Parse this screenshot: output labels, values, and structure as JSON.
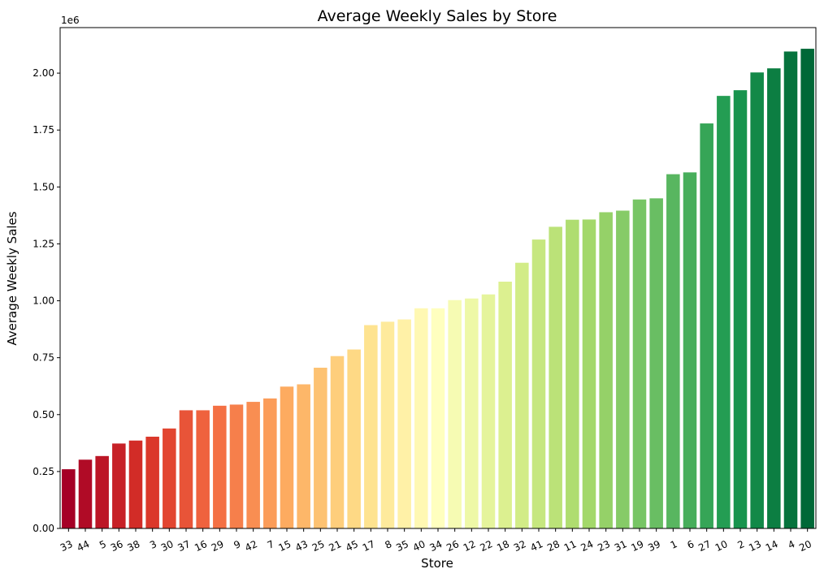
{
  "chart_data": {
    "type": "bar",
    "title": "Average Weekly Sales by Store",
    "xlabel": "Store",
    "ylabel": "Average Weekly Sales",
    "y_scale_label": "1e6",
    "ylim": [
      0,
      2.2
    ],
    "yticks": [
      "0.00",
      "0.25",
      "0.50",
      "0.75",
      "1.00",
      "1.25",
      "1.50",
      "1.75",
      "2.00"
    ],
    "categories": [
      "33",
      "44",
      "5",
      "36",
      "38",
      "3",
      "30",
      "37",
      "16",
      "29",
      "9",
      "42",
      "7",
      "15",
      "43",
      "25",
      "21",
      "45",
      "17",
      "8",
      "35",
      "40",
      "34",
      "26",
      "12",
      "22",
      "18",
      "32",
      "41",
      "28",
      "11",
      "24",
      "23",
      "31",
      "19",
      "39",
      "1",
      "6",
      "27",
      "10",
      "2",
      "13",
      "14",
      "4",
      "20"
    ],
    "values": [
      0.26,
      0.302,
      0.318,
      0.373,
      0.386,
      0.403,
      0.439,
      0.519,
      0.519,
      0.539,
      0.544,
      0.556,
      0.571,
      0.623,
      0.633,
      0.706,
      0.757,
      0.786,
      0.893,
      0.908,
      0.918,
      0.967,
      0.967,
      1.003,
      1.01,
      1.028,
      1.084,
      1.167,
      1.269,
      1.325,
      1.356,
      1.357,
      1.389,
      1.396,
      1.445,
      1.45,
      1.556,
      1.564,
      1.779,
      1.9,
      1.925,
      2.003,
      2.021,
      2.095,
      2.107
    ],
    "grid": false,
    "palette": [
      "#a50026",
      "#d73027",
      "#f46d43",
      "#fdae61",
      "#fee08b",
      "#ffffbf",
      "#d9ef8b",
      "#a6d96a",
      "#66bd63",
      "#1a9850",
      "#006837"
    ]
  }
}
